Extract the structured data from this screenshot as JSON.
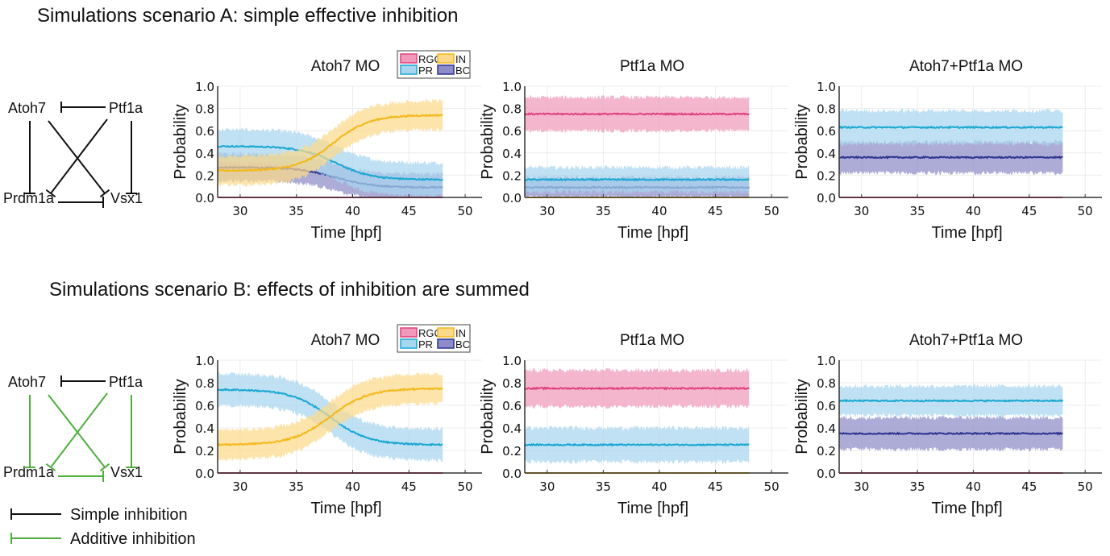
{
  "sections": [
    {
      "title": "Simulations scenario A: simple effective inhibition",
      "edge_type": "simple"
    },
    {
      "title": "Simulations scenario B: effects of inhibition are summed",
      "edge_type": "additive"
    }
  ],
  "network": {
    "nodes": [
      "Atoh7",
      "Ptf1a",
      "Prdm1a",
      "Vsx1"
    ],
    "edges": [
      {
        "from": "Ptf1a",
        "to": "Atoh7",
        "type_A": "simple",
        "type_B": "simple"
      },
      {
        "from": "Atoh7",
        "to": "Prdm1a",
        "type_A": "simple",
        "type_B": "additive"
      },
      {
        "from": "Atoh7",
        "to": "Vsx1",
        "type_A": "simple",
        "type_B": "additive"
      },
      {
        "from": "Ptf1a",
        "to": "Prdm1a",
        "type_A": "simple",
        "type_B": "additive"
      },
      {
        "from": "Ptf1a",
        "to": "Vsx1",
        "type_A": "simple",
        "type_B": "additive"
      },
      {
        "from": "Prdm1a",
        "to": "Vsx1",
        "type_A": "simple",
        "type_B": "additive"
      }
    ]
  },
  "key": [
    {
      "label": "Simple inhibition",
      "color": "#111111"
    },
    {
      "label": "Additive inhibition",
      "color": "#4caf3a"
    }
  ],
  "legend": {
    "entries": [
      {
        "label": "RGC",
        "fill": "#ee9ab8",
        "line": "#e0417f"
      },
      {
        "label": "IN",
        "fill": "#fbd98a",
        "line": "#f3b81a"
      },
      {
        "label": "PR",
        "fill": "#a8d6ee",
        "line": "#1aa7d3"
      },
      {
        "label": "BC",
        "fill": "#8e8cc8",
        "line": "#2e3592"
      }
    ]
  },
  "chart_data": [
    {
      "type": "area",
      "row": "A",
      "title": "Atoh7 MO",
      "xlabel": "Time [hpf]",
      "ylabel": "Probability",
      "xlim": [
        28,
        51.5
      ],
      "ylim": [
        0,
        1
      ],
      "xticks": [
        "30",
        "35",
        "40",
        "45",
        "50"
      ],
      "yticks": [
        "0.0",
        "0.2",
        "0.4",
        "0.6",
        "0.8",
        "1.0"
      ],
      "grid": true,
      "legend": "top-right of title",
      "x_range": [
        28,
        48
      ],
      "series": [
        {
          "name": "RGC",
          "kind": "flat",
          "mean": 0.0,
          "sd": 0.0
        },
        {
          "name": "IN",
          "kind": "sigmoid",
          "start": 0.24,
          "end": 0.74,
          "mid": 38.3,
          "width": 1.6,
          "sd": 0.13
        },
        {
          "name": "PR",
          "kind": "sigmoid",
          "start": 0.46,
          "end": 0.16,
          "mid": 38.5,
          "width": 1.6,
          "sd": 0.15
        },
        {
          "name": "BC",
          "kind": "sigmoid",
          "start": 0.27,
          "end": 0.09,
          "mid": 38.5,
          "width": 1.6,
          "sd": 0.12
        }
      ]
    },
    {
      "type": "area",
      "row": "A",
      "title": "Ptf1a MO",
      "xlabel": "Time [hpf]",
      "ylabel": "Probability",
      "xlim": [
        28,
        51.5
      ],
      "ylim": [
        0,
        1
      ],
      "xticks": [
        "30",
        "35",
        "40",
        "45",
        "50"
      ],
      "yticks": [
        "0.0",
        "0.2",
        "0.4",
        "0.6",
        "0.8",
        "1.0"
      ],
      "grid": true,
      "x_range": [
        28,
        48
      ],
      "series": [
        {
          "name": "RGC",
          "kind": "flat",
          "mean": 0.75,
          "sd": 0.15
        },
        {
          "name": "IN",
          "kind": "flat",
          "mean": 0.0,
          "sd": 0.0
        },
        {
          "name": "PR",
          "kind": "flat",
          "mean": 0.16,
          "sd": 0.11
        },
        {
          "name": "BC",
          "kind": "flat",
          "mean": 0.09,
          "sd": 0.09
        }
      ]
    },
    {
      "type": "area",
      "row": "A",
      "title": "Atoh7+Ptf1a MO",
      "xlabel": "Time [hpf]",
      "ylabel": "Probability",
      "xlim": [
        28,
        51.5
      ],
      "ylim": [
        0,
        1
      ],
      "xticks": [
        "30",
        "35",
        "40",
        "45",
        "50"
      ],
      "yticks": [
        "0.0",
        "0.2",
        "0.4",
        "0.6",
        "0.8",
        "1.0"
      ],
      "grid": true,
      "x_range": [
        28,
        48
      ],
      "series": [
        {
          "name": "RGC",
          "kind": "flat",
          "mean": 0.0,
          "sd": 0.0
        },
        {
          "name": "IN",
          "kind": "flat",
          "mean": 0.0,
          "sd": 0.0
        },
        {
          "name": "PR",
          "kind": "flat",
          "mean": 0.63,
          "sd": 0.15
        },
        {
          "name": "BC",
          "kind": "flat",
          "mean": 0.36,
          "sd": 0.14
        }
      ]
    },
    {
      "type": "area",
      "row": "B",
      "title": "Atoh7 MO",
      "xlabel": "Time [hpf]",
      "ylabel": "Probability",
      "xlim": [
        28,
        51.5
      ],
      "ylim": [
        0,
        1
      ],
      "xticks": [
        "30",
        "35",
        "40",
        "45",
        "50"
      ],
      "yticks": [
        "0.0",
        "0.2",
        "0.4",
        "0.6",
        "0.8",
        "1.0"
      ],
      "grid": true,
      "legend": "top-right of title",
      "x_range": [
        28,
        48
      ],
      "series": [
        {
          "name": "RGC",
          "kind": "flat",
          "mean": 0.0,
          "sd": 0.0
        },
        {
          "name": "IN",
          "kind": "sigmoid",
          "start": 0.25,
          "end": 0.75,
          "mid": 38.0,
          "width": 1.7,
          "sd": 0.13
        },
        {
          "name": "PR",
          "kind": "sigmoid",
          "start": 0.74,
          "end": 0.25,
          "mid": 38.0,
          "width": 1.7,
          "sd": 0.14
        },
        {
          "name": "BC",
          "kind": "flat",
          "mean": 0.0,
          "sd": 0.0
        }
      ]
    },
    {
      "type": "area",
      "row": "B",
      "title": "Ptf1a MO",
      "xlabel": "Time [hpf]",
      "ylabel": "Probability",
      "xlim": [
        28,
        51.5
      ],
      "ylim": [
        0,
        1
      ],
      "xticks": [
        "30",
        "35",
        "40",
        "45",
        "50"
      ],
      "yticks": [
        "0.0",
        "0.2",
        "0.4",
        "0.6",
        "0.8",
        "1.0"
      ],
      "grid": true,
      "x_range": [
        28,
        48
      ],
      "series": [
        {
          "name": "RGC",
          "kind": "flat",
          "mean": 0.75,
          "sd": 0.16
        },
        {
          "name": "IN",
          "kind": "flat",
          "mean": 0.0,
          "sd": 0.0
        },
        {
          "name": "PR",
          "kind": "flat",
          "mean": 0.25,
          "sd": 0.15
        },
        {
          "name": "BC",
          "kind": "flat",
          "mean": 0.0,
          "sd": 0.0
        }
      ]
    },
    {
      "type": "area",
      "row": "B",
      "title": "Atoh7+Ptf1a MO",
      "xlabel": "Time [hpf]",
      "ylabel": "Probability",
      "xlim": [
        28,
        51.5
      ],
      "ylim": [
        0,
        1
      ],
      "xticks": [
        "30",
        "35",
        "40",
        "45",
        "50"
      ],
      "yticks": [
        "0.0",
        "0.2",
        "0.4",
        "0.6",
        "0.8",
        "1.0"
      ],
      "grid": true,
      "x_range": [
        28,
        48
      ],
      "series": [
        {
          "name": "RGC",
          "kind": "flat",
          "mean": 0.0,
          "sd": 0.0
        },
        {
          "name": "IN",
          "kind": "flat",
          "mean": 0.0,
          "sd": 0.0
        },
        {
          "name": "PR",
          "kind": "flat",
          "mean": 0.64,
          "sd": 0.13
        },
        {
          "name": "BC",
          "kind": "flat",
          "mean": 0.35,
          "sd": 0.14
        }
      ]
    }
  ]
}
